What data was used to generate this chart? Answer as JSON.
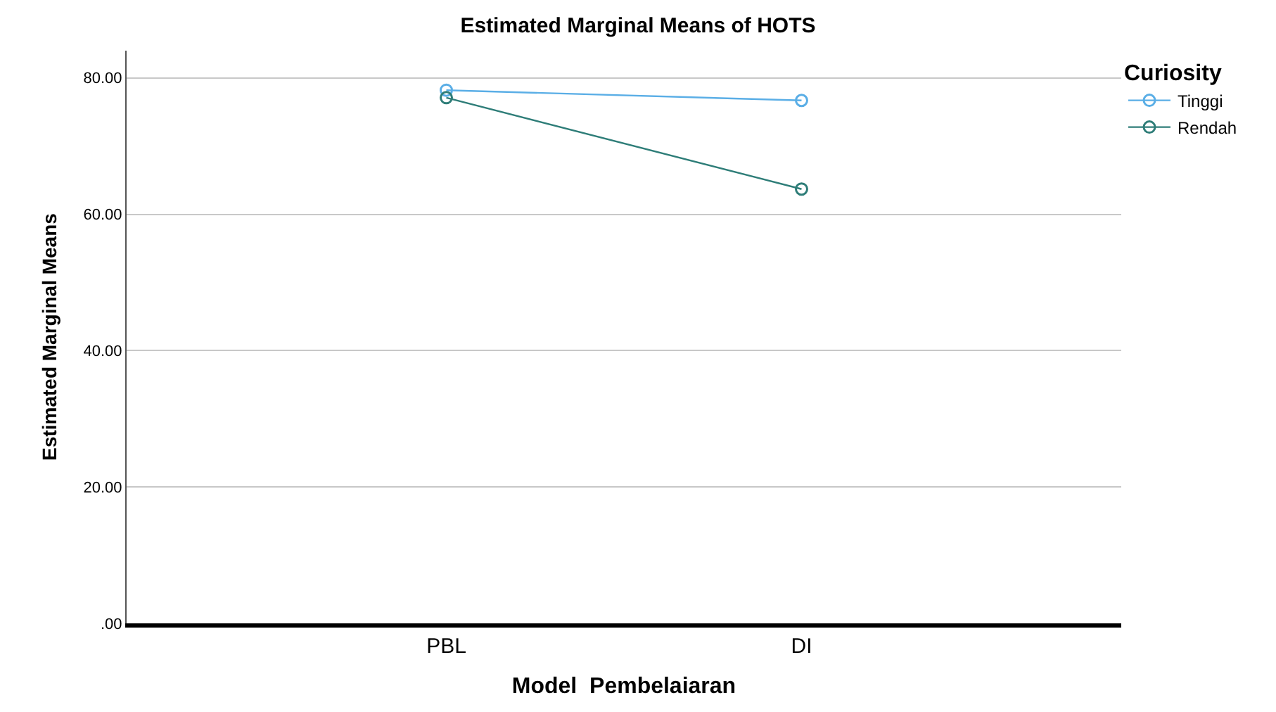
{
  "chart_data": {
    "type": "line",
    "title": "Estimated Marginal Means of HOTS",
    "xlabel": "Model  Pembelaiaran",
    "ylabel": "Estimated Marginal Means",
    "legend_title": "Curiosity",
    "categories": [
      "PBL",
      "DI"
    ],
    "series": [
      {
        "name": "Tinggi",
        "color": "#5aaee6",
        "values": [
          78.2,
          76.7
        ]
      },
      {
        "name": "Rendah",
        "color": "#2e7d78",
        "values": [
          77.1,
          63.7
        ]
      }
    ],
    "ylim": [
      0,
      84
    ],
    "yticks": [
      {
        "value": 0,
        "label": ".00"
      },
      {
        "value": 20,
        "label": "20.00"
      },
      {
        "value": 40,
        "label": "40.00"
      },
      {
        "value": 60,
        "label": "60.00"
      },
      {
        "value": 80,
        "label": "80.00"
      }
    ],
    "grid": "y",
    "legend": "top right",
    "marker": "circle"
  }
}
